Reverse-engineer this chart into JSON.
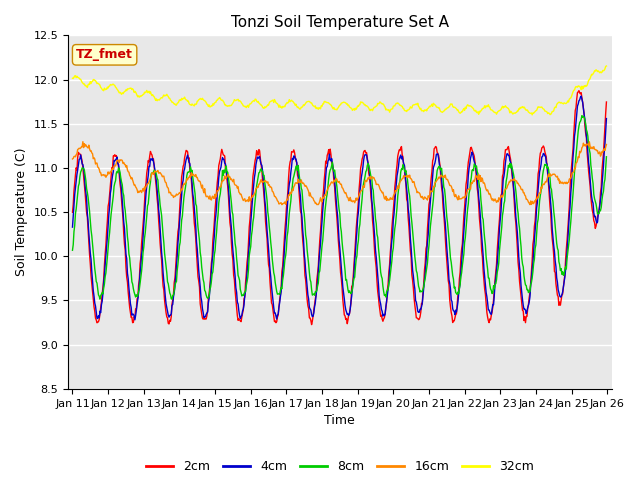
{
  "title": "Tonzi Soil Temperature Set A",
  "xlabel": "Time",
  "ylabel": "Soil Temperature (C)",
  "ylim": [
    8.5,
    12.5
  ],
  "annotation_text": "TZ_fmet",
  "annotation_bbox_face": "#ffffcc",
  "annotation_bbox_edge": "#cc8800",
  "annotation_color": "#cc0000",
  "tick_labels": [
    "Jan 11",
    "Jan 12",
    "Jan 13",
    "Jan 14",
    "Jan 15",
    "Jan 16",
    "Jan 17",
    "Jan 18",
    "Jan 19",
    "Jan 20",
    "Jan 21",
    "Jan 22",
    "Jan 23",
    "Jan 24",
    "Jan 25",
    "Jan 26"
  ],
  "legend_labels": [
    "2cm",
    "4cm",
    "8cm",
    "16cm",
    "32cm"
  ],
  "legend_colors": [
    "#ff0000",
    "#0000cc",
    "#00cc00",
    "#ff8800",
    "#ffff00"
  ],
  "bg_color": "#e8e8e8"
}
